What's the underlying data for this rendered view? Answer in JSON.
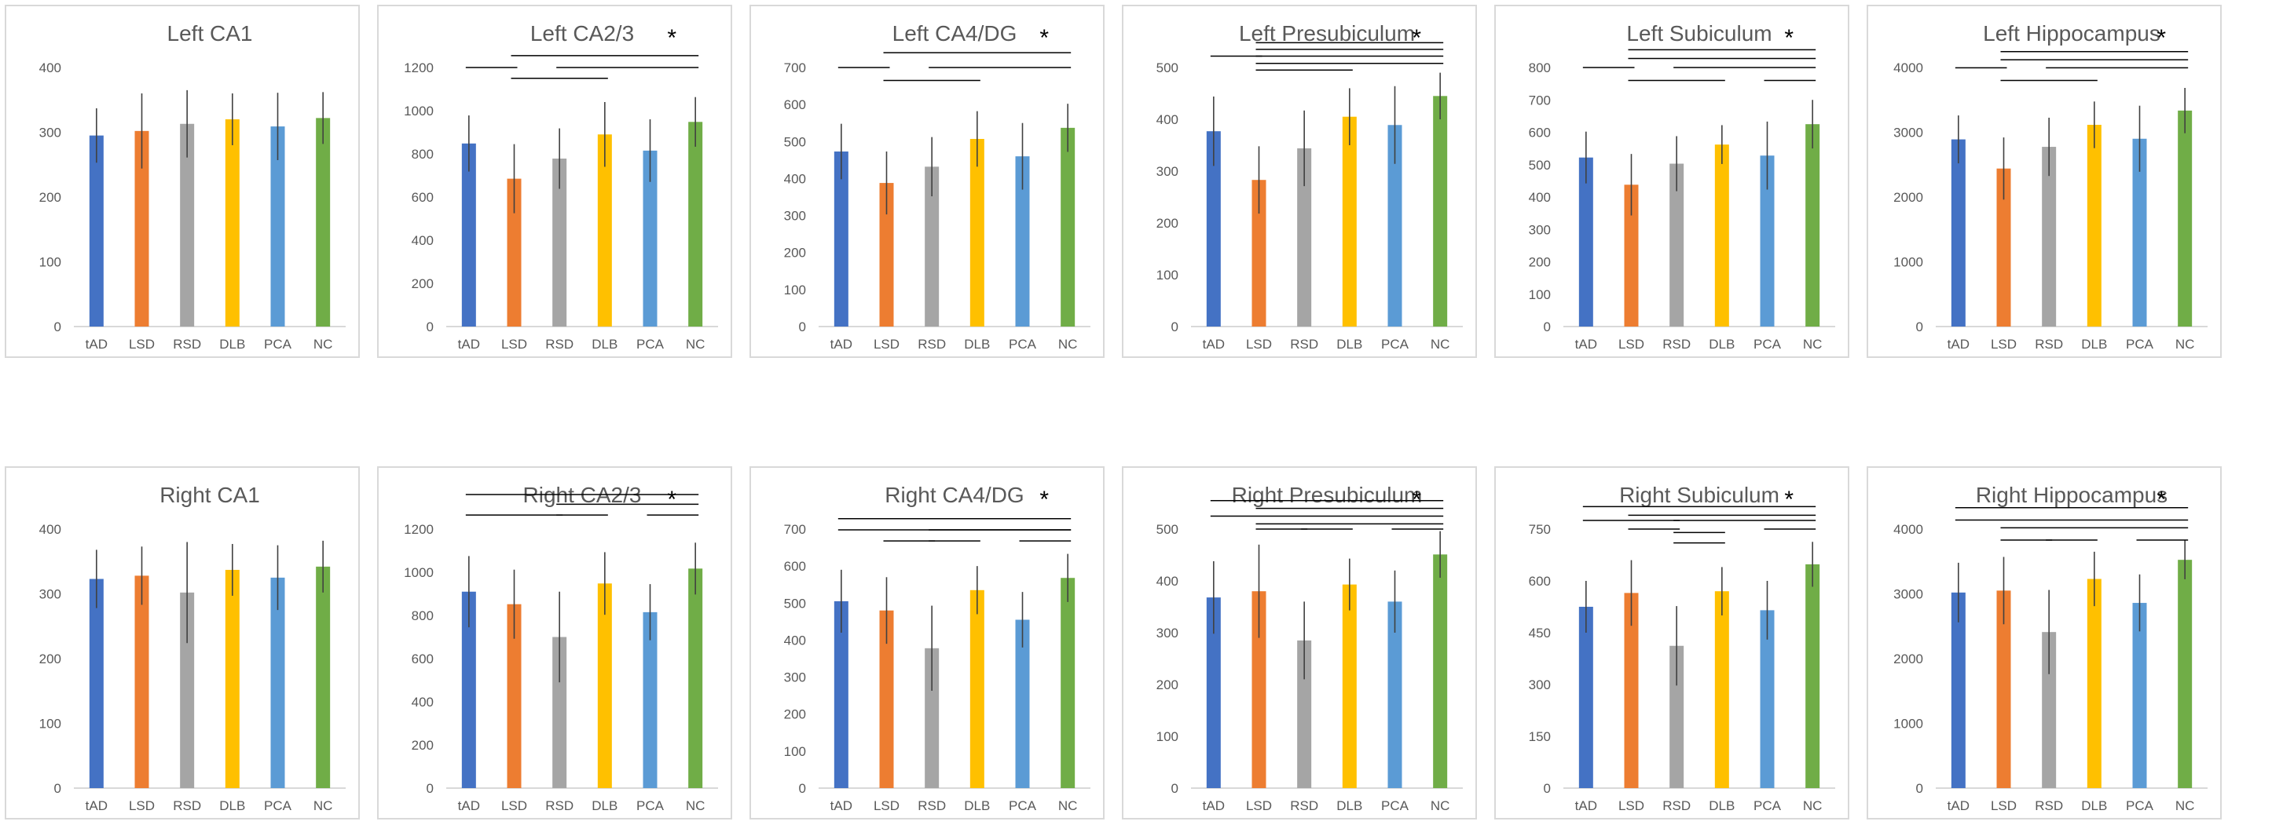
{
  "colors": {
    "tAD": "#4472c4",
    "LSD": "#ed7d31",
    "RSD": "#a5a5a5",
    "DLB": "#ffc000",
    "PCA": "#5b9bd5",
    "NC": "#70ad47",
    "axis": "#d9d9d9",
    "text": "#595959",
    "errorbar": "#404040",
    "bracket": "#000000"
  },
  "chart_data": [
    {
      "type": "bar",
      "title": "Left CA1",
      "categories": [
        "tAD",
        "LSD",
        "RSD",
        "DLB",
        "PCA",
        "NC"
      ],
      "values": [
        295,
        302,
        313,
        320,
        309,
        322
      ],
      "errors": [
        42,
        58,
        52,
        40,
        52,
        40
      ],
      "ylim": [
        0,
        400
      ],
      "yticks": [
        0,
        100,
        200,
        300,
        400
      ],
      "ytick_labels": [
        "0",
        "100",
        "200",
        "300",
        "400"
      ],
      "significance": "",
      "brackets": []
    },
    {
      "type": "bar",
      "title": "Left CA2/3",
      "categories": [
        "tAD",
        "LSD",
        "RSD",
        "DLB",
        "PCA",
        "NC"
      ],
      "values": [
        848,
        685,
        778,
        890,
        815,
        948
      ],
      "errors": [
        130,
        160,
        140,
        150,
        145,
        115
      ],
      "ylim": [
        0,
        1200
      ],
      "yticks": [
        0,
        200,
        400,
        600,
        800,
        1000,
        1200
      ],
      "ytick_labels": [
        "0",
        "200",
        "400",
        "600",
        "800",
        "1000",
        "1200"
      ],
      "significance": "*",
      "brackets": [
        [
          0,
          1,
          1200
        ],
        [
          1,
          5,
          1255
        ],
        [
          1,
          3,
          1150
        ],
        [
          2,
          5,
          1200
        ]
      ]
    },
    {
      "type": "bar",
      "title": "Left CA4/DG",
      "categories": [
        "tAD",
        "LSD",
        "RSD",
        "DLB",
        "PCA",
        "NC"
      ],
      "values": [
        473,
        388,
        432,
        507,
        460,
        537
      ],
      "errors": [
        75,
        85,
        80,
        75,
        90,
        65
      ],
      "ylim": [
        0,
        700
      ],
      "yticks": [
        0,
        100,
        200,
        300,
        400,
        500,
        600,
        700
      ],
      "ytick_labels": [
        "0",
        "100",
        "200",
        "300",
        "400",
        "500",
        "600",
        "700"
      ],
      "significance": "*",
      "brackets": [
        [
          0,
          1,
          700
        ],
        [
          1,
          5,
          740
        ],
        [
          1,
          3,
          665
        ],
        [
          2,
          5,
          700
        ]
      ]
    },
    {
      "type": "bar",
      "title": "Left Presubiculum",
      "categories": [
        "tAD",
        "LSD",
        "RSD",
        "DLB",
        "PCA",
        "NC"
      ],
      "values": [
        377,
        283,
        344,
        405,
        389,
        445
      ],
      "errors": [
        67,
        65,
        73,
        55,
        75,
        45
      ],
      "ylim": [
        0,
        500
      ],
      "yticks": [
        0,
        100,
        200,
        300,
        400,
        500
      ],
      "ytick_labels": [
        "0",
        "100",
        "200",
        "300",
        "400",
        "500"
      ],
      "significance": "*",
      "brackets": [
        [
          0,
          1,
          522
        ],
        [
          1,
          5,
          548
        ],
        [
          1,
          5,
          535
        ],
        [
          1,
          5,
          522
        ],
        [
          1,
          4,
          508
        ],
        [
          1,
          3,
          495
        ],
        [
          2,
          5,
          508
        ]
      ]
    },
    {
      "type": "bar",
      "title": "Left Subiculum",
      "categories": [
        "tAD",
        "LSD",
        "RSD",
        "DLB",
        "PCA",
        "NC"
      ],
      "values": [
        522,
        438,
        503,
        562,
        528,
        625
      ],
      "errors": [
        80,
        95,
        85,
        60,
        105,
        75
      ],
      "ylim": [
        0,
        800
      ],
      "yticks": [
        0,
        100,
        200,
        300,
        400,
        500,
        600,
        700,
        800
      ],
      "ytick_labels": [
        "0",
        "100",
        "200",
        "300",
        "400",
        "500",
        "600",
        "700",
        "800"
      ],
      "significance": "*",
      "brackets": [
        [
          0,
          1,
          800
        ],
        [
          1,
          5,
          855
        ],
        [
          1,
          5,
          828
        ],
        [
          1,
          3,
          760
        ],
        [
          2,
          5,
          800
        ],
        [
          4,
          5,
          760
        ]
      ]
    },
    {
      "type": "bar",
      "title": "Left Hippocampus",
      "categories": [
        "tAD",
        "LSD",
        "RSD",
        "DLB",
        "PCA",
        "NC"
      ],
      "values": [
        2890,
        2440,
        2775,
        3115,
        2900,
        3335
      ],
      "errors": [
        370,
        480,
        450,
        360,
        510,
        350
      ],
      "ylim": [
        0,
        4000
      ],
      "yticks": [
        0,
        1000,
        2000,
        3000,
        4000
      ],
      "ytick_labels": [
        "0",
        "1000",
        "2000",
        "3000",
        "4000"
      ],
      "significance": "*",
      "brackets": [
        [
          0,
          1,
          3995
        ],
        [
          1,
          5,
          4245
        ],
        [
          1,
          5,
          4120
        ],
        [
          1,
          3,
          3800
        ],
        [
          2,
          5,
          3995
        ]
      ]
    },
    {
      "type": "bar",
      "title": "Right CA1",
      "categories": [
        "tAD",
        "LSD",
        "RSD",
        "DLB",
        "PCA",
        "NC"
      ],
      "values": [
        323,
        328,
        302,
        337,
        325,
        342
      ],
      "errors": [
        45,
        45,
        78,
        40,
        50,
        40
      ],
      "ylim": [
        0,
        400
      ],
      "yticks": [
        0,
        100,
        200,
        300,
        400
      ],
      "ytick_labels": [
        "0",
        "100",
        "200",
        "300",
        "400"
      ],
      "significance": "",
      "brackets": []
    },
    {
      "type": "bar",
      "title": "Right CA2/3",
      "categories": [
        "tAD",
        "LSD",
        "RSD",
        "DLB",
        "PCA",
        "NC"
      ],
      "values": [
        910,
        852,
        700,
        948,
        815,
        1017
      ],
      "errors": [
        165,
        160,
        210,
        145,
        130,
        120
      ],
      "ylim": [
        0,
        1200
      ],
      "yticks": [
        0,
        200,
        400,
        600,
        800,
        1000,
        1200
      ],
      "ytick_labels": [
        "0",
        "200",
        "400",
        "600",
        "800",
        "1000",
        "1200"
      ],
      "significance": "*",
      "brackets": [
        [
          0,
          2,
          1265
        ],
        [
          0,
          5,
          1360
        ],
        [
          2,
          5,
          1315
        ],
        [
          2,
          3,
          1265
        ],
        [
          4,
          5,
          1265
        ]
      ]
    },
    {
      "type": "bar",
      "title": "Right CA4/DG",
      "categories": [
        "tAD",
        "LSD",
        "RSD",
        "DLB",
        "PCA",
        "NC"
      ],
      "values": [
        505,
        480,
        378,
        535,
        455,
        568
      ],
      "errors": [
        85,
        90,
        115,
        65,
        75,
        65
      ],
      "ylim": [
        0,
        700
      ],
      "yticks": [
        0,
        100,
        200,
        300,
        400,
        500,
        600,
        700
      ],
      "ytick_labels": [
        "0",
        "100",
        "200",
        "300",
        "400",
        "500",
        "600",
        "700"
      ],
      "significance": "*",
      "brackets": [
        [
          0,
          5,
          728
        ],
        [
          0,
          5,
          698
        ],
        [
          1,
          2,
          668
        ],
        [
          2,
          3,
          668
        ],
        [
          2,
          5,
          698
        ],
        [
          4,
          5,
          668
        ]
      ]
    },
    {
      "type": "bar",
      "title": "Right Presubiculum",
      "categories": [
        "tAD",
        "LSD",
        "RSD",
        "DLB",
        "PCA",
        "NC"
      ],
      "values": [
        368,
        380,
        285,
        393,
        360,
        451
      ],
      "errors": [
        70,
        90,
        75,
        50,
        60,
        45
      ],
      "ylim": [
        0,
        500
      ],
      "yticks": [
        0,
        100,
        200,
        300,
        400,
        500
      ],
      "ytick_labels": [
        "0",
        "100",
        "200",
        "300",
        "400",
        "500"
      ],
      "significance": "*",
      "brackets": [
        [
          0,
          5,
          555
        ],
        [
          0,
          5,
          525
        ],
        [
          1,
          5,
          540
        ],
        [
          1,
          5,
          510
        ],
        [
          1,
          2,
          500
        ],
        [
          2,
          3,
          500
        ],
        [
          4,
          5,
          500
        ]
      ]
    },
    {
      "type": "bar",
      "title": "Right Subiculum",
      "categories": [
        "tAD",
        "LSD",
        "RSD",
        "DLB",
        "PCA",
        "NC"
      ],
      "values": [
        525,
        565,
        412,
        570,
        515,
        648
      ],
      "errors": [
        75,
        95,
        115,
        70,
        85,
        65
      ],
      "ylim": [
        0,
        750
      ],
      "yticks": [
        0,
        150,
        300,
        450,
        600,
        750
      ],
      "ytick_labels": [
        "0",
        "150",
        "300",
        "450",
        "600",
        "750"
      ],
      "significance": "*",
      "brackets": [
        [
          0,
          5,
          815
        ],
        [
          0,
          2,
          775
        ],
        [
          1,
          5,
          790
        ],
        [
          1,
          2,
          750
        ],
        [
          2,
          3,
          740
        ],
        [
          2,
          5,
          775
        ],
        [
          4,
          5,
          750
        ],
        [
          2,
          3,
          710
        ]
      ]
    },
    {
      "type": "bar",
      "title": "Right Hippocampus",
      "categories": [
        "tAD",
        "LSD",
        "RSD",
        "DLB",
        "PCA",
        "NC"
      ],
      "values": [
        3020,
        3050,
        2410,
        3230,
        2860,
        3525
      ],
      "errors": [
        460,
        520,
        650,
        420,
        440,
        300
      ],
      "ylim": [
        0,
        4000
      ],
      "yticks": [
        0,
        1000,
        2000,
        3000,
        4000
      ],
      "ytick_labels": [
        "0",
        "1000",
        "2000",
        "3000",
        "4000"
      ],
      "significance": "*",
      "brackets": [
        [
          0,
          5,
          4330
        ],
        [
          0,
          5,
          4140
        ],
        [
          1,
          5,
          4020
        ],
        [
          1,
          2,
          3830
        ],
        [
          2,
          3,
          3830
        ],
        [
          4,
          5,
          3830
        ]
      ]
    }
  ]
}
